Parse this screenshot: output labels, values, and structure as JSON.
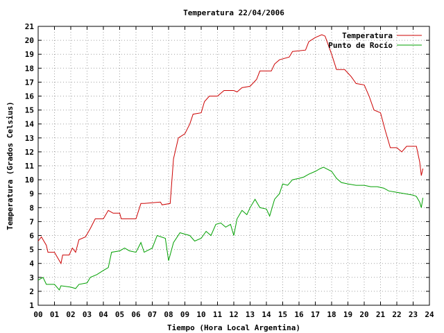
{
  "chart_data": {
    "type": "line",
    "title": "Temperatura 22/04/2006",
    "xlabel": "Tiempo (Hora Local Argentina)",
    "ylabel": "Temperatura (Grados Celsius)",
    "xlim": [
      0,
      24
    ],
    "ylim": [
      1,
      21
    ],
    "x_ticks": [
      0,
      1,
      2,
      3,
      4,
      5,
      6,
      7,
      8,
      9,
      10,
      11,
      12,
      13,
      14,
      15,
      16,
      17,
      18,
      19,
      20,
      21,
      22,
      23,
      24
    ],
    "x_tick_labels": [
      "00",
      "01",
      "02",
      "03",
      "04",
      "05",
      "06",
      "07",
      "08",
      "09",
      "10",
      "11",
      "12",
      "13",
      "14",
      "15",
      "16",
      "17",
      "18",
      "19",
      "20",
      "21",
      "22",
      "23",
      "24"
    ],
    "y_ticks": [
      1,
      2,
      3,
      4,
      5,
      6,
      7,
      8,
      9,
      10,
      11,
      12,
      13,
      14,
      15,
      16,
      17,
      18,
      19,
      20,
      21
    ],
    "y_tick_labels": [
      "1",
      "2",
      "3",
      "4",
      "5",
      "6",
      "7",
      "8",
      "9",
      "10",
      "11",
      "12",
      "13",
      "14",
      "15",
      "16",
      "17",
      "18",
      "19",
      "20",
      "21"
    ],
    "grid": true,
    "legend_position": "top-right",
    "series": [
      {
        "name": "Temperatura",
        "color": "#cc0000",
        "points": [
          [
            0.0,
            5.6
          ],
          [
            0.2,
            5.9
          ],
          [
            0.5,
            5.3
          ],
          [
            0.6,
            4.8
          ],
          [
            1.0,
            4.8
          ],
          [
            1.2,
            4.4
          ],
          [
            1.4,
            4.0
          ],
          [
            1.5,
            4.6
          ],
          [
            1.9,
            4.6
          ],
          [
            2.1,
            5.1
          ],
          [
            2.3,
            4.8
          ],
          [
            2.5,
            5.7
          ],
          [
            2.9,
            5.9
          ],
          [
            3.2,
            6.5
          ],
          [
            3.5,
            7.2
          ],
          [
            4.0,
            7.2
          ],
          [
            4.3,
            7.8
          ],
          [
            4.6,
            7.6
          ],
          [
            5.0,
            7.6
          ],
          [
            5.1,
            7.2
          ],
          [
            6.0,
            7.2
          ],
          [
            6.3,
            8.3
          ],
          [
            6.5,
            8.3
          ],
          [
            7.5,
            8.4
          ],
          [
            7.6,
            8.2
          ],
          [
            8.1,
            8.3
          ],
          [
            8.3,
            11.5
          ],
          [
            8.6,
            13.0
          ],
          [
            9.0,
            13.3
          ],
          [
            9.3,
            14.0
          ],
          [
            9.5,
            14.7
          ],
          [
            10.0,
            14.8
          ],
          [
            10.2,
            15.6
          ],
          [
            10.5,
            16.0
          ],
          [
            11.0,
            16.0
          ],
          [
            11.4,
            16.4
          ],
          [
            12.0,
            16.4
          ],
          [
            12.2,
            16.3
          ],
          [
            12.5,
            16.6
          ],
          [
            13.0,
            16.7
          ],
          [
            13.4,
            17.2
          ],
          [
            13.6,
            17.8
          ],
          [
            14.3,
            17.8
          ],
          [
            14.5,
            18.3
          ],
          [
            14.8,
            18.6
          ],
          [
            15.4,
            18.8
          ],
          [
            15.6,
            19.2
          ],
          [
            16.4,
            19.3
          ],
          [
            16.6,
            19.9
          ],
          [
            17.0,
            20.2
          ],
          [
            17.4,
            20.4
          ],
          [
            17.6,
            20.3
          ],
          [
            18.0,
            19.0
          ],
          [
            18.3,
            17.9
          ],
          [
            18.8,
            17.9
          ],
          [
            19.2,
            17.4
          ],
          [
            19.5,
            16.9
          ],
          [
            20.0,
            16.8
          ],
          [
            20.3,
            16.0
          ],
          [
            20.6,
            15.0
          ],
          [
            21.0,
            14.8
          ],
          [
            21.3,
            13.5
          ],
          [
            21.6,
            12.3
          ],
          [
            22.0,
            12.3
          ],
          [
            22.3,
            12.0
          ],
          [
            22.6,
            12.4
          ],
          [
            23.2,
            12.4
          ],
          [
            23.4,
            11.3
          ],
          [
            23.5,
            10.3
          ],
          [
            23.6,
            10.8
          ]
        ]
      },
      {
        "name": "Punto de Rocío",
        "color": "#00a000",
        "points": [
          [
            0.0,
            2.8
          ],
          [
            0.3,
            3.0
          ],
          [
            0.5,
            2.5
          ],
          [
            1.0,
            2.5
          ],
          [
            1.3,
            2.1
          ],
          [
            1.4,
            2.4
          ],
          [
            2.0,
            2.3
          ],
          [
            2.3,
            2.2
          ],
          [
            2.5,
            2.5
          ],
          [
            3.0,
            2.6
          ],
          [
            3.2,
            3.0
          ],
          [
            3.6,
            3.2
          ],
          [
            4.0,
            3.5
          ],
          [
            4.3,
            3.7
          ],
          [
            4.5,
            4.8
          ],
          [
            5.0,
            4.9
          ],
          [
            5.3,
            5.1
          ],
          [
            5.6,
            4.9
          ],
          [
            6.0,
            4.8
          ],
          [
            6.3,
            5.5
          ],
          [
            6.5,
            4.8
          ],
          [
            7.0,
            5.1
          ],
          [
            7.3,
            6.0
          ],
          [
            7.8,
            5.8
          ],
          [
            8.0,
            4.2
          ],
          [
            8.3,
            5.5
          ],
          [
            8.7,
            6.2
          ],
          [
            9.0,
            6.1
          ],
          [
            9.3,
            6.0
          ],
          [
            9.6,
            5.6
          ],
          [
            10.0,
            5.8
          ],
          [
            10.3,
            6.3
          ],
          [
            10.6,
            6.0
          ],
          [
            10.9,
            6.8
          ],
          [
            11.2,
            6.9
          ],
          [
            11.5,
            6.6
          ],
          [
            11.8,
            6.8
          ],
          [
            12.0,
            6.0
          ],
          [
            12.2,
            7.2
          ],
          [
            12.5,
            7.8
          ],
          [
            12.8,
            7.5
          ],
          [
            13.0,
            8.0
          ],
          [
            13.3,
            8.6
          ],
          [
            13.6,
            8.0
          ],
          [
            14.0,
            7.9
          ],
          [
            14.2,
            7.4
          ],
          [
            14.5,
            8.6
          ],
          [
            14.8,
            9.0
          ],
          [
            15.0,
            9.7
          ],
          [
            15.3,
            9.6
          ],
          [
            15.6,
            10.0
          ],
          [
            16.0,
            10.1
          ],
          [
            16.3,
            10.2
          ],
          [
            16.6,
            10.4
          ],
          [
            17.0,
            10.6
          ],
          [
            17.3,
            10.8
          ],
          [
            17.5,
            10.9
          ],
          [
            18.0,
            10.6
          ],
          [
            18.3,
            10.1
          ],
          [
            18.6,
            9.8
          ],
          [
            19.0,
            9.7
          ],
          [
            19.5,
            9.6
          ],
          [
            20.0,
            9.6
          ],
          [
            20.4,
            9.5
          ],
          [
            20.8,
            9.5
          ],
          [
            21.2,
            9.4
          ],
          [
            21.5,
            9.2
          ],
          [
            22.0,
            9.1
          ],
          [
            22.5,
            9.0
          ],
          [
            23.0,
            8.9
          ],
          [
            23.2,
            8.8
          ],
          [
            23.4,
            8.4
          ],
          [
            23.5,
            8.0
          ],
          [
            23.6,
            8.7
          ]
        ]
      }
    ]
  }
}
